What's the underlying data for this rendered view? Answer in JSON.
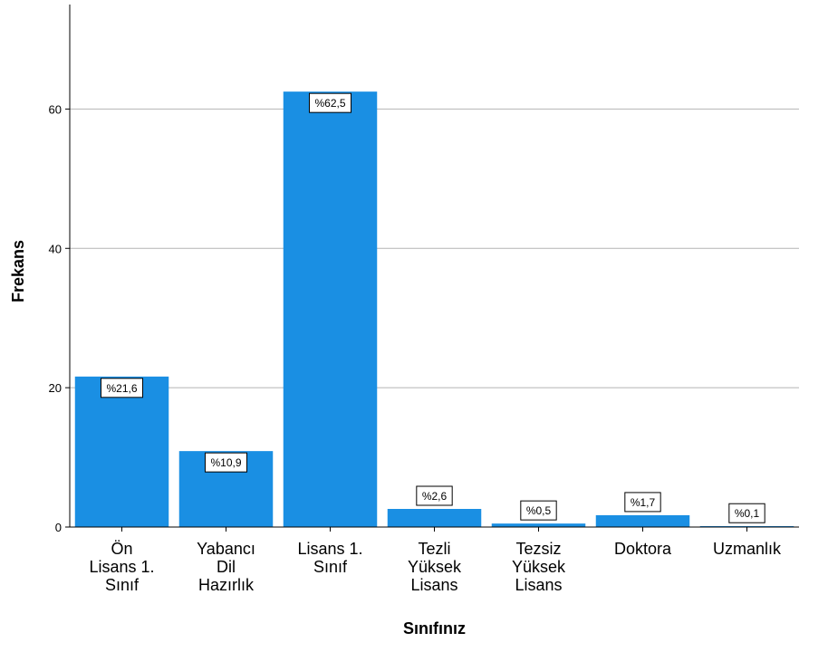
{
  "chart_data": {
    "type": "bar",
    "xlabel": "Sınıfınız",
    "ylabel": "Frekans",
    "ylim": [
      0,
      75
    ],
    "yticks": [
      0,
      20,
      40,
      60
    ],
    "grid": true,
    "categories": [
      [
        "Ön",
        "Lisans 1.",
        "Sınıf"
      ],
      [
        "Yabancı",
        "Dil",
        "Hazırlık"
      ],
      [
        "Lisans 1.",
        "Sınıf"
      ],
      [
        "Tezli",
        "Yüksek",
        "Lisans"
      ],
      [
        "Tezsiz",
        "Yüksek",
        "Lisans"
      ],
      [
        "Doktora"
      ],
      [
        "Uzmanlık"
      ]
    ],
    "values": [
      21.6,
      10.9,
      62.5,
      2.6,
      0.5,
      1.7,
      0.1
    ],
    "data_labels": [
      "%21,6",
      "%10,9",
      "%62,5",
      "%2,6",
      "%0,5",
      "%1,7",
      "%0,1"
    ],
    "colors": {
      "bar": "#1a8fe3",
      "grid": "#b4b4b4",
      "axis": "#000000"
    }
  }
}
